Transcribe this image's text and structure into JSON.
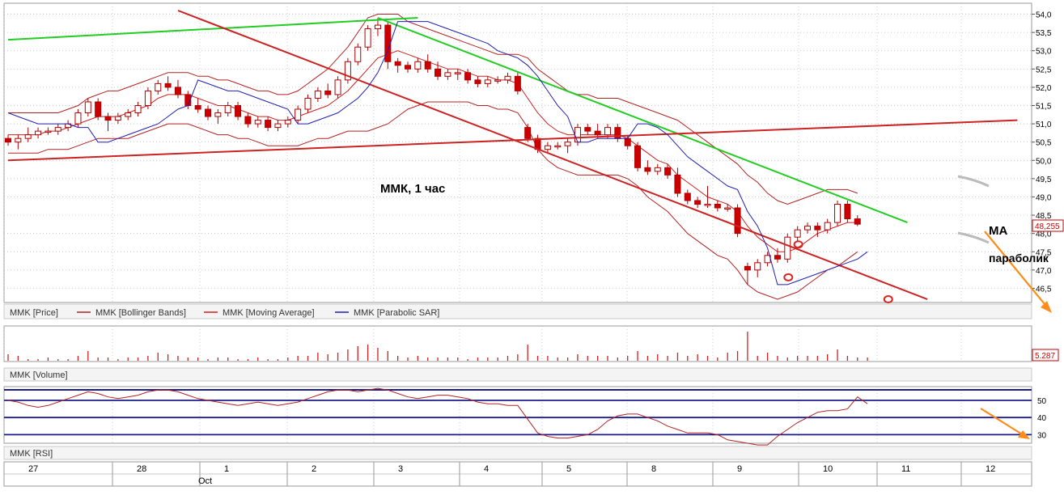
{
  "colors": {
    "up": "#ffffff",
    "down": "#cc0000",
    "outline": "#b00000",
    "bollinger": "#b22222",
    "sma": "#cc2222",
    "sar": "#1f1fb0",
    "trend_green": "#22cc22",
    "trend_red": "#cc2222",
    "arrow": "#ff8c1a",
    "rsi_band": "#1c1c8a",
    "grid": "#b8b8b8"
  },
  "chart_data": [
    {
      "type": "candlestick",
      "title": "ММК, 1 час",
      "legend": [
        "MMK [Price]",
        "MMK [Bollinger Bands]",
        "MMK [Moving Average]",
        "MMK [Parabolic SAR]"
      ],
      "y_ticks": [
        "54,0",
        "53,5",
        "53,0",
        "52,5",
        "52,0",
        "51,5",
        "51,0",
        "50,5",
        "50,0",
        "49,5",
        "49,0",
        "48,5",
        "48,0",
        "47,5",
        "47,0",
        "46,5"
      ],
      "ylim": [
        46.2,
        54.1
      ],
      "x_day_labels": [
        "27",
        "28",
        "1",
        "2",
        "3",
        "4",
        "5",
        "8",
        "9",
        "10",
        "11",
        "12"
      ],
      "x_month_label": "Oct",
      "last_price_label": "48,255",
      "annotations": [
        "MA",
        "параболик"
      ],
      "candles": [
        [
          50.6,
          50.7,
          50.4,
          50.5
        ],
        [
          50.5,
          50.7,
          50.3,
          50.6
        ],
        [
          50.6,
          50.9,
          50.5,
          50.7
        ],
        [
          50.7,
          50.9,
          50.6,
          50.8
        ],
        [
          50.8,
          50.9,
          50.7,
          50.8
        ],
        [
          50.8,
          51.0,
          50.7,
          50.9
        ],
        [
          50.9,
          51.1,
          50.8,
          51.0
        ],
        [
          51.0,
          51.4,
          50.9,
          51.3
        ],
        [
          51.3,
          51.7,
          51.2,
          51.6
        ],
        [
          51.6,
          51.7,
          51.1,
          51.2
        ],
        [
          51.2,
          51.3,
          50.8,
          51.1
        ],
        [
          51.1,
          51.3,
          51.0,
          51.2
        ],
        [
          51.2,
          51.4,
          51.1,
          51.3
        ],
        [
          51.3,
          51.6,
          51.2,
          51.5
        ],
        [
          51.5,
          52.0,
          51.4,
          51.9
        ],
        [
          51.9,
          52.2,
          51.8,
          52.1
        ],
        [
          52.1,
          52.3,
          51.9,
          52.0
        ],
        [
          52.0,
          52.2,
          51.7,
          51.8
        ],
        [
          51.8,
          51.9,
          51.4,
          51.5
        ],
        [
          51.5,
          51.7,
          51.3,
          51.4
        ],
        [
          51.4,
          51.5,
          51.1,
          51.2
        ],
        [
          51.2,
          51.4,
          51.0,
          51.3
        ],
        [
          51.3,
          51.6,
          51.2,
          51.5
        ],
        [
          51.5,
          51.6,
          51.1,
          51.2
        ],
        [
          51.2,
          51.3,
          50.9,
          51.0
        ],
        [
          51.0,
          51.2,
          50.9,
          51.1
        ],
        [
          51.1,
          51.2,
          50.8,
          50.9
        ],
        [
          50.9,
          51.1,
          50.8,
          51.0
        ],
        [
          51.0,
          51.2,
          50.9,
          51.1
        ],
        [
          51.1,
          51.5,
          51.0,
          51.4
        ],
        [
          51.4,
          51.8,
          51.3,
          51.7
        ],
        [
          51.7,
          52.0,
          51.6,
          51.9
        ],
        [
          51.9,
          52.1,
          51.7,
          51.8
        ],
        [
          51.8,
          52.3,
          51.7,
          52.2
        ],
        [
          52.2,
          52.8,
          52.1,
          52.7
        ],
        [
          52.7,
          53.2,
          52.6,
          53.1
        ],
        [
          53.1,
          53.7,
          53.0,
          53.6
        ],
        [
          53.6,
          53.9,
          53.4,
          53.7
        ],
        [
          53.7,
          53.8,
          52.5,
          52.7
        ],
        [
          52.7,
          52.8,
          52.4,
          52.6
        ],
        [
          52.6,
          52.7,
          52.4,
          52.5
        ],
        [
          52.5,
          52.8,
          52.4,
          52.7
        ],
        [
          52.7,
          52.9,
          52.4,
          52.5
        ],
        [
          52.5,
          52.7,
          52.2,
          52.3
        ],
        [
          52.3,
          52.5,
          52.2,
          52.4
        ],
        [
          52.4,
          52.5,
          52.2,
          52.4
        ],
        [
          52.4,
          52.5,
          52.1,
          52.2
        ],
        [
          52.2,
          52.3,
          52.0,
          52.1
        ],
        [
          52.1,
          52.3,
          52.0,
          52.2
        ],
        [
          52.2,
          52.3,
          52.1,
          52.2
        ],
        [
          52.2,
          52.4,
          52.1,
          52.3
        ],
        [
          52.3,
          52.4,
          51.8,
          51.9
        ],
        [
          50.9,
          51.0,
          50.5,
          50.6
        ],
        [
          50.6,
          50.7,
          50.2,
          50.3
        ],
        [
          50.3,
          50.5,
          50.2,
          50.4
        ],
        [
          50.4,
          50.5,
          50.3,
          50.4
        ],
        [
          50.4,
          50.6,
          50.2,
          50.5
        ],
        [
          50.5,
          51.0,
          50.4,
          50.9
        ],
        [
          50.9,
          51.0,
          50.7,
          50.8
        ],
        [
          50.8,
          51.0,
          50.6,
          50.7
        ],
        [
          50.7,
          51.0,
          50.6,
          50.9
        ],
        [
          50.9,
          51.0,
          50.5,
          50.6
        ],
        [
          50.6,
          50.7,
          50.3,
          50.4
        ],
        [
          50.4,
          50.5,
          49.7,
          49.8
        ],
        [
          49.8,
          50.0,
          49.6,
          49.7
        ],
        [
          49.7,
          49.9,
          49.6,
          49.8
        ],
        [
          49.8,
          49.9,
          49.5,
          49.6
        ],
        [
          49.6,
          49.8,
          49.0,
          49.1
        ],
        [
          49.1,
          49.2,
          48.8,
          48.9
        ],
        [
          48.9,
          49.0,
          48.7,
          48.8
        ],
        [
          48.8,
          49.3,
          48.7,
          48.8
        ],
        [
          48.8,
          48.9,
          48.6,
          48.7
        ],
        [
          48.7,
          48.8,
          48.6,
          48.7
        ],
        [
          48.7,
          48.8,
          47.9,
          48.0
        ],
        [
          47.1,
          47.2,
          46.6,
          47.0
        ],
        [
          47.0,
          47.3,
          46.8,
          47.2
        ],
        [
          47.2,
          47.5,
          47.1,
          47.4
        ],
        [
          47.4,
          47.6,
          47.2,
          47.3
        ],
        [
          47.3,
          48.0,
          47.2,
          47.9
        ],
        [
          47.9,
          48.2,
          47.8,
          48.1
        ],
        [
          48.1,
          48.3,
          48.0,
          48.2
        ],
        [
          48.2,
          48.3,
          47.9,
          48.1
        ],
        [
          48.1,
          48.4,
          48.0,
          48.3
        ],
        [
          48.3,
          48.9,
          48.2,
          48.8
        ],
        [
          48.8,
          48.9,
          48.3,
          48.4
        ],
        [
          48.4,
          48.5,
          48.2,
          48.255
        ]
      ],
      "sma": [
        50.7,
        50.7,
        50.7,
        50.7,
        50.8,
        50.8,
        50.9,
        51.0,
        51.1,
        51.2,
        51.2,
        51.2,
        51.3,
        51.4,
        51.5,
        51.7,
        51.8,
        51.8,
        51.8,
        51.7,
        51.6,
        51.5,
        51.5,
        51.4,
        51.3,
        51.2,
        51.2,
        51.1,
        51.1,
        51.2,
        51.3,
        51.4,
        51.5,
        51.7,
        51.9,
        52.2,
        52.5,
        52.8,
        52.9,
        53.0,
        52.9,
        52.8,
        52.7,
        52.6,
        52.5,
        52.5,
        52.4,
        52.3,
        52.3,
        52.2,
        52.2,
        52.1,
        51.7,
        51.3,
        51.0,
        50.8,
        50.7,
        50.7,
        50.7,
        50.7,
        50.7,
        50.7,
        50.6,
        50.4,
        50.2,
        50.0,
        49.9,
        49.6,
        49.4,
        49.2,
        49.0,
        48.9,
        48.8,
        48.6,
        48.2,
        47.9,
        47.7,
        47.5,
        47.5,
        47.6,
        47.8,
        48.0,
        48.1,
        48.2,
        48.3,
        48.3
      ],
      "bb_upper": [
        51.3,
        51.3,
        51.3,
        51.3,
        51.3,
        51.3,
        51.4,
        51.5,
        51.7,
        51.8,
        51.9,
        51.9,
        52.0,
        52.1,
        52.2,
        52.3,
        52.4,
        52.4,
        52.4,
        52.3,
        52.3,
        52.2,
        52.2,
        52.1,
        52.0,
        51.9,
        51.9,
        51.8,
        51.8,
        51.9,
        52.1,
        52.3,
        52.5,
        52.8,
        53.1,
        53.5,
        53.9,
        54.0,
        54.0,
        54.0,
        53.8,
        53.7,
        53.6,
        53.5,
        53.4,
        53.3,
        53.2,
        53.1,
        53.0,
        52.9,
        52.9,
        52.9,
        52.8,
        52.5,
        52.3,
        52.1,
        51.9,
        51.8,
        51.8,
        51.7,
        51.7,
        51.7,
        51.6,
        51.5,
        51.4,
        51.3,
        51.2,
        51.1,
        50.9,
        50.7,
        50.5,
        50.3,
        50.1,
        49.9,
        49.6,
        49.4,
        49.1,
        48.9,
        48.8,
        48.9,
        49.0,
        49.1,
        49.2,
        49.2,
        49.2,
        49.1
      ],
      "bb_lower": [
        50.2,
        50.2,
        50.2,
        50.2,
        50.3,
        50.3,
        50.3,
        50.4,
        50.5,
        50.6,
        50.6,
        50.6,
        50.6,
        50.7,
        50.8,
        50.9,
        51.0,
        51.0,
        51.0,
        50.9,
        50.8,
        50.7,
        50.7,
        50.6,
        50.6,
        50.5,
        50.4,
        50.4,
        50.4,
        50.4,
        50.5,
        50.6,
        50.6,
        50.7,
        50.8,
        50.8,
        50.8,
        50.9,
        51.0,
        51.2,
        51.4,
        51.5,
        51.6,
        51.6,
        51.6,
        51.6,
        51.6,
        51.5,
        51.5,
        51.4,
        51.4,
        51.3,
        50.9,
        50.3,
        50.0,
        49.8,
        49.7,
        49.6,
        49.6,
        49.6,
        49.6,
        49.6,
        49.5,
        49.3,
        49.0,
        48.8,
        48.6,
        48.3,
        48.0,
        47.8,
        47.6,
        47.4,
        47.3,
        47.0,
        46.6,
        46.4,
        46.3,
        46.2,
        46.3,
        46.4,
        46.6,
        46.8,
        47.0,
        47.1,
        47.3,
        47.5
      ],
      "psar": [
        51.3,
        51.2,
        51.1,
        51.0,
        51.0,
        51.0,
        51.0,
        50.9,
        50.9,
        50.5,
        50.5,
        50.6,
        50.7,
        50.8,
        50.9,
        51.0,
        51.2,
        51.4,
        51.5,
        52.2,
        52.1,
        52.0,
        51.9,
        51.9,
        51.8,
        51.7,
        51.6,
        51.5,
        51.4,
        51.0,
        51.0,
        51.1,
        51.2,
        51.3,
        51.5,
        51.7,
        52.0,
        52.4,
        53.0,
        53.8,
        53.8,
        53.8,
        53.8,
        53.7,
        53.6,
        53.5,
        53.4,
        53.3,
        53.2,
        53.0,
        52.9,
        52.8,
        52.6,
        52.3,
        51.9,
        51.5,
        51.2,
        50.5,
        50.5,
        50.6,
        50.6,
        50.6,
        50.6,
        51.0,
        51.0,
        50.9,
        50.7,
        50.4,
        50.1,
        49.9,
        49.7,
        49.5,
        49.3,
        49.2,
        48.6,
        48.2,
        47.6,
        46.6,
        46.6,
        46.7,
        46.8,
        46.9,
        47.0,
        47.1,
        47.2,
        47.3,
        47.5
      ],
      "trend_lines": [
        {
          "color": "green",
          "points": [
            [
              0,
              53.3
            ],
            [
              41,
              53.9
            ]
          ]
        },
        {
          "color": "green",
          "points": [
            [
              37,
              53.9
            ],
            [
              90,
              48.3
            ]
          ]
        },
        {
          "color": "red",
          "points": [
            [
              0,
              50.0
            ],
            [
              101,
              51.1
            ]
          ]
        },
        {
          "color": "red",
          "points": [
            [
              17,
              54.1
            ],
            [
              92,
              46.2
            ]
          ]
        }
      ],
      "markers": [
        {
          "i": 79,
          "v": 47.7
        },
        {
          "i": 78,
          "v": 46.8
        },
        {
          "i": 88,
          "v": 46.2
        }
      ]
    },
    {
      "type": "bar",
      "title": "MMK [Volume]",
      "last_value_label": "5.287",
      "values": [
        4,
        3,
        1,
        1,
        2,
        1,
        1,
        3,
        6,
        2,
        2,
        1,
        2,
        2,
        3,
        5,
        4,
        3,
        2,
        2,
        1,
        2,
        2,
        1,
        1,
        2,
        1,
        1,
        2,
        3,
        3,
        5,
        4,
        5,
        7,
        9,
        10,
        8,
        6,
        3,
        2,
        3,
        2,
        2,
        2,
        2,
        1,
        2,
        2,
        2,
        3,
        4,
        10,
        3,
        3,
        2,
        2,
        4,
        3,
        3,
        3,
        2,
        3,
        6,
        3,
        4,
        3,
        5,
        3,
        4,
        3,
        2,
        5,
        6,
        18,
        3,
        5,
        3,
        2,
        3,
        3,
        3,
        4,
        7,
        3,
        2,
        2
      ]
    },
    {
      "type": "line",
      "title": "MMK [RSI]",
      "y_ticks": [
        "50",
        "40",
        "30"
      ],
      "ylim": [
        25,
        58
      ],
      "bands": [
        50,
        40,
        30
      ],
      "values": [
        50,
        49,
        47,
        46,
        47,
        49,
        51,
        53,
        55,
        54,
        52,
        51,
        52,
        53,
        55,
        56,
        56,
        55,
        53,
        51,
        50,
        49,
        48,
        47,
        48,
        49,
        48,
        47,
        48,
        49,
        51,
        53,
        55,
        56,
        56,
        55,
        56,
        57,
        56,
        54,
        52,
        51,
        52,
        53,
        53,
        52,
        51,
        49,
        48,
        48,
        47,
        47,
        39,
        31,
        29,
        28,
        28,
        29,
        30,
        33,
        38,
        41,
        42,
        42,
        40,
        38,
        35,
        33,
        31,
        31,
        31,
        30,
        27,
        26,
        25,
        24,
        24,
        29,
        33,
        37,
        40,
        43,
        44,
        44,
        45,
        52,
        48
      ]
    }
  ]
}
